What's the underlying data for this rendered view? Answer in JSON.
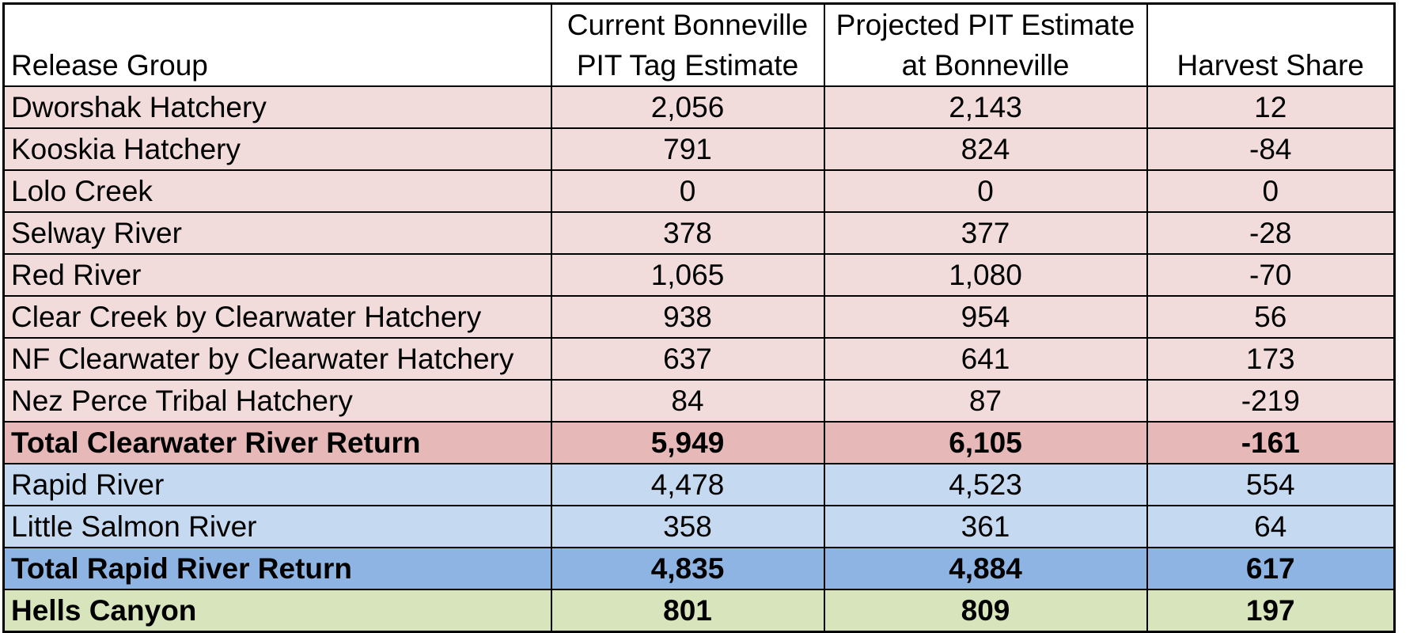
{
  "chart_data": {
    "type": "table",
    "columns": [
      "Release Group",
      "Current Bonneville PIT Tag Estimate",
      "Projected PIT Estimate at Bonneville",
      "Harvest Share"
    ],
    "header": {
      "c0": [
        "Release Group"
      ],
      "c1": [
        "Current Bonneville",
        "PIT Tag Estimate"
      ],
      "c2": [
        "Projected PIT Estimate",
        "at Bonneville"
      ],
      "c3": [
        "Harvest Share"
      ]
    },
    "rows": [
      {
        "group": "clearwater",
        "kind": "item",
        "name": "Dworshak Hatchery",
        "values": [
          "2,056",
          "2,143",
          "12"
        ]
      },
      {
        "group": "clearwater",
        "kind": "item",
        "name": "Kooskia Hatchery",
        "values": [
          "791",
          "824",
          "-84"
        ]
      },
      {
        "group": "clearwater",
        "kind": "item",
        "name": "Lolo Creek",
        "values": [
          "0",
          "0",
          "0"
        ]
      },
      {
        "group": "clearwater",
        "kind": "item",
        "name": "Selway River",
        "values": [
          "378",
          "377",
          "-28"
        ]
      },
      {
        "group": "clearwater",
        "kind": "item",
        "name": "Red River",
        "values": [
          "1,065",
          "1,080",
          "-70"
        ]
      },
      {
        "group": "clearwater",
        "kind": "item",
        "name": "Clear Creek by Clearwater Hatchery",
        "values": [
          "938",
          "954",
          "56"
        ]
      },
      {
        "group": "clearwater",
        "kind": "item",
        "name": "NF Clearwater by Clearwater Hatchery",
        "values": [
          "637",
          "641",
          "173"
        ]
      },
      {
        "group": "clearwater",
        "kind": "item",
        "name": "Nez Perce Tribal Hatchery",
        "values": [
          "84",
          "87",
          "-219"
        ]
      },
      {
        "group": "clearwater",
        "kind": "total",
        "name": "Total Clearwater River Return",
        "values": [
          "5,949",
          "6,105",
          "-161"
        ]
      },
      {
        "group": "rapid",
        "kind": "item",
        "name": "Rapid River",
        "values": [
          "4,478",
          "4,523",
          "554"
        ]
      },
      {
        "group": "rapid",
        "kind": "item",
        "name": "Little Salmon River",
        "values": [
          "358",
          "361",
          "64"
        ]
      },
      {
        "group": "rapid",
        "kind": "total",
        "name": "Total Rapid River Return",
        "values": [
          "4,835",
          "4,884",
          "617"
        ]
      },
      {
        "group": "hells",
        "kind": "total",
        "name": "Hells Canyon",
        "values": [
          "801",
          "809",
          "197"
        ]
      }
    ],
    "colors": {
      "clearwater_item": "#f2dcdb",
      "clearwater_total": "#e6b9b8",
      "rapid_item": "#c5d9f1",
      "rapid_total": "#8db4e2",
      "hells_total": "#d8e4bc"
    }
  }
}
